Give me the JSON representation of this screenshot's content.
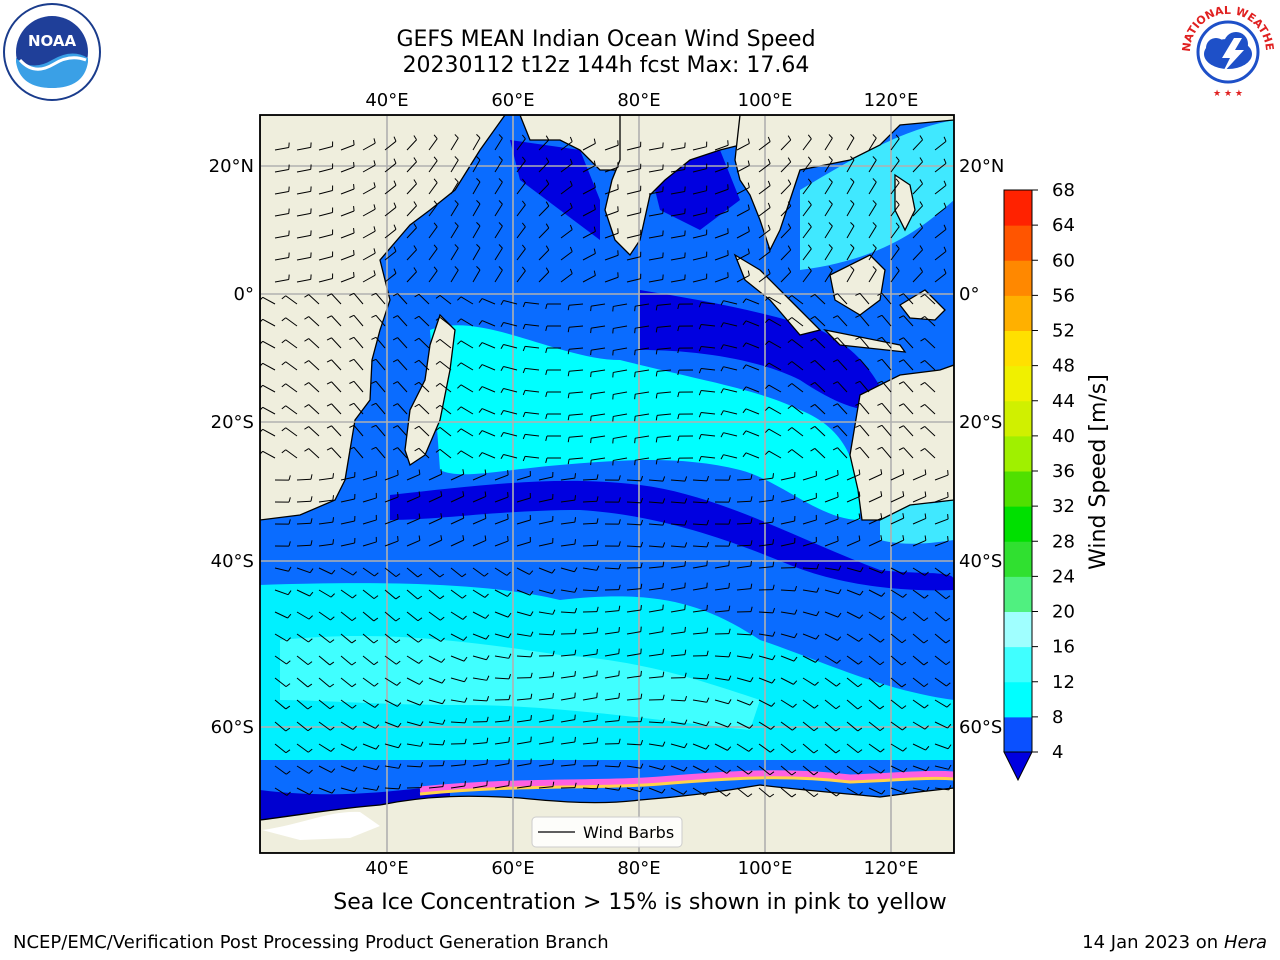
{
  "title": {
    "line1": "GEFS MEAN Indian Ocean Wind Speed",
    "line2": "20230112 t12z 144h fcst   Max: 17.64"
  },
  "logos": {
    "left_icon": "noaa-logo",
    "right_icon": "nws-logo",
    "nws_text": "NATIONAL WEATHER SERVICE"
  },
  "map": {
    "lon_labels": [
      "40°E",
      "60°E",
      "80°E",
      "100°E",
      "120°E"
    ],
    "lat_labels": [
      "20°N",
      "0°",
      "20°S",
      "40°S",
      "60°S"
    ],
    "land_color": "#efeedd",
    "legend_label": "Wind Barbs"
  },
  "colorbar": {
    "label": "Wind Speed [m/s]",
    "ticks": [
      "4",
      "8",
      "12",
      "16",
      "20",
      "24",
      "28",
      "32",
      "36",
      "40",
      "44",
      "48",
      "52",
      "56",
      "60",
      "64",
      "68"
    ],
    "colors": [
      "#0a50ff",
      "#00ffff",
      "#40ffff",
      "#a0ffff",
      "#50f080",
      "#30e030",
      "#00e000",
      "#50e000",
      "#a0f000",
      "#d0f000",
      "#f0f000",
      "#ffe000",
      "#ffb000",
      "#ff8800",
      "#ff5500",
      "#ff2200"
    ],
    "extend_color": "#0000e0"
  },
  "caption": "Sea Ice Concentration > 15% is shown in pink to yellow",
  "footer": {
    "left": "NCEP/EMC/Verification Post Processing Product Generation Branch",
    "right_prefix": "14 Jan 2023 on ",
    "right_machine": "Hera"
  }
}
